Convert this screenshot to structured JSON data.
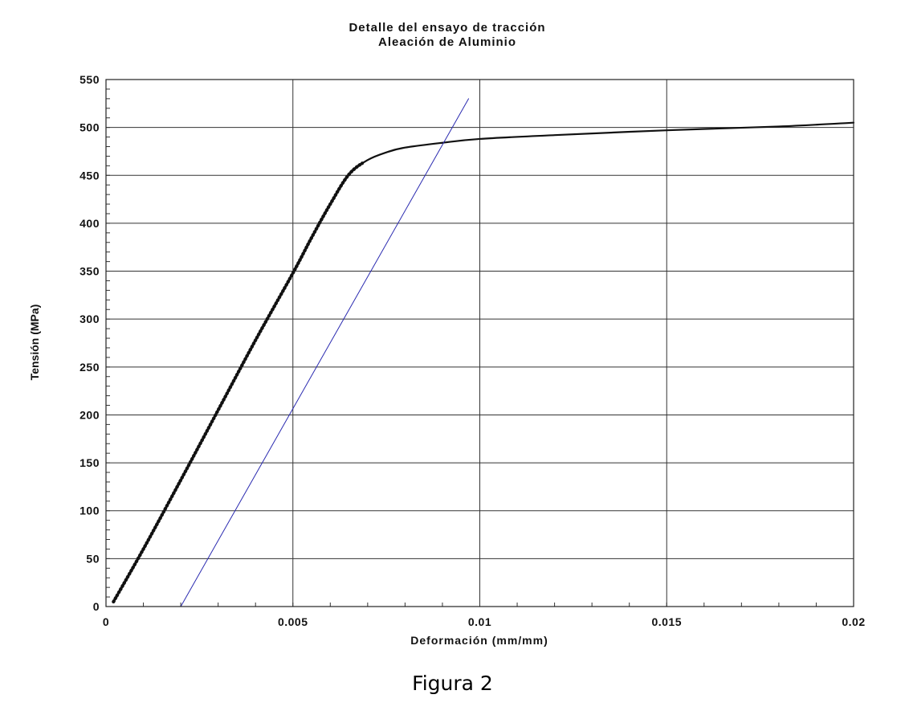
{
  "chart_data": {
    "type": "line",
    "title": "Detalle del ensayo de tracción",
    "subtitle": "Aleación de Aluminio",
    "xlabel": "Deformación (mm/mm)",
    "ylabel": "Tensión (MPa)",
    "xlim": [
      0,
      0.02
    ],
    "ylim": [
      0,
      550
    ],
    "x_ticks": [
      0,
      0.005,
      0.01,
      0.015,
      0.02
    ],
    "x_tick_labels": [
      "0",
      "0.005",
      "0.01",
      "0.015",
      "0.02"
    ],
    "y_ticks": [
      0,
      50,
      100,
      150,
      200,
      250,
      300,
      350,
      400,
      450,
      500,
      550
    ],
    "y_tick_labels": [
      "0",
      "50",
      "100",
      "150",
      "200",
      "250",
      "300",
      "350",
      "400",
      "450",
      "500",
      "550"
    ],
    "grid": true,
    "series": [
      {
        "color": "#111111",
        "x": [
          0.0002,
          0.001,
          0.002,
          0.003,
          0.004,
          0.005,
          0.0055,
          0.006,
          0.0065,
          0.007,
          0.0075,
          0.008,
          0.009,
          0.01,
          0.012,
          0.015,
          0.018,
          0.02
        ],
        "y": [
          5,
          60,
          132,
          205,
          278,
          348,
          385,
          420,
          451,
          466,
          474,
          479,
          484,
          488,
          492,
          497,
          501,
          505
        ]
      },
      {
        "color": "#2a2ab0",
        "x": [
          0.002,
          0.0097
        ],
        "y": [
          0,
          530
        ]
      }
    ]
  },
  "caption": "Figura 2"
}
